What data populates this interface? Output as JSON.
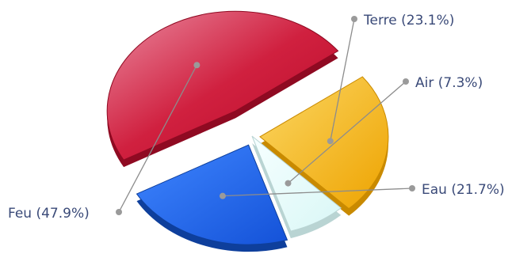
{
  "chart_data": {
    "type": "pie",
    "style": "3d-exploded",
    "slices": [
      {
        "label": "Terre (23.1%)",
        "value": 23.1,
        "color": "#f0a800",
        "exploded": true
      },
      {
        "label": "Air (7.3%)",
        "value": 7.3,
        "color": "#e8fdfc",
        "exploded": false
      },
      {
        "label": "Eau (21.7%)",
        "value": 21.7,
        "color": "#1c62ec",
        "exploded": true
      },
      {
        "label": "Feu (47.9%)",
        "value": 47.9,
        "color": "#c8102e",
        "exploded": true
      }
    ]
  }
}
